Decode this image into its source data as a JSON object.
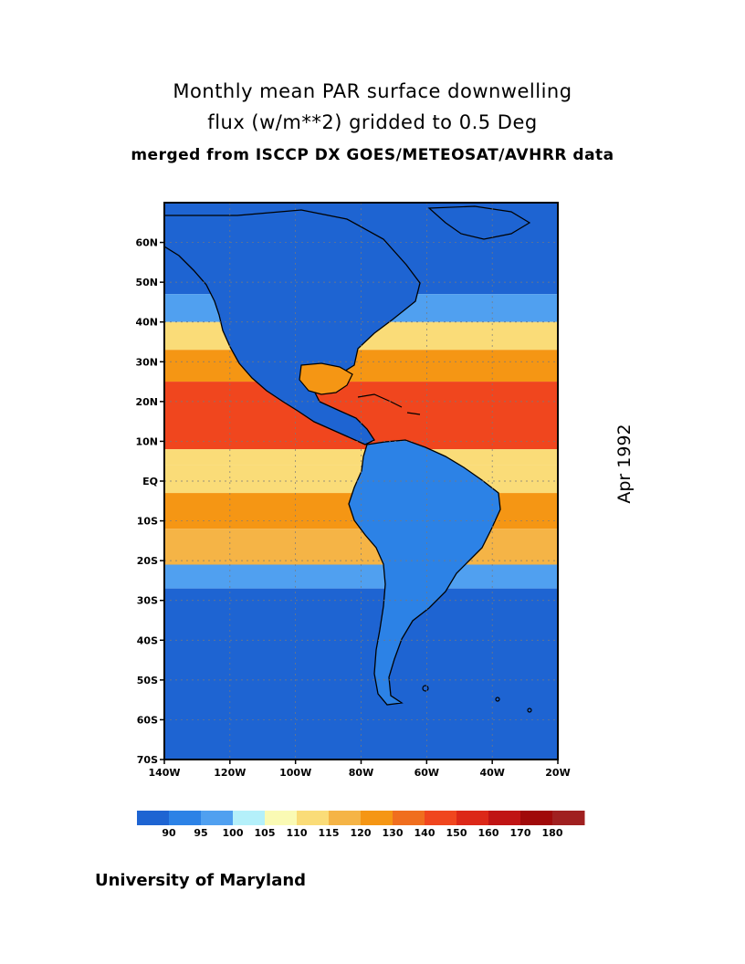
{
  "title": {
    "line1": "Monthly mean PAR surface downwelling",
    "line2": "flux (w/m**2) gridded to 0.5 Deg",
    "line3": "merged from ISCCP DX GOES/METEOSAT/AVHRR data"
  },
  "period_label": "Apr 1992",
  "footer": "University of Maryland",
  "map": {
    "lon_range": [
      -140,
      -20
    ],
    "lat_range": [
      -70,
      70
    ],
    "lon_ticks": [
      {
        "lon": -140,
        "label": "140W"
      },
      {
        "lon": -120,
        "label": "120W"
      },
      {
        "lon": -100,
        "label": "100W"
      },
      {
        "lon": -80,
        "label": "80W"
      },
      {
        "lon": -60,
        "label": "60W"
      },
      {
        "lon": -40,
        "label": "40W"
      },
      {
        "lon": -20,
        "label": "20W"
      }
    ],
    "lat_ticks": [
      {
        "lat": 60,
        "label": "60N"
      },
      {
        "lat": 50,
        "label": "50N"
      },
      {
        "lat": 40,
        "label": "40N"
      },
      {
        "lat": 30,
        "label": "30N"
      },
      {
        "lat": 20,
        "label": "20N"
      },
      {
        "lat": 10,
        "label": "10N"
      },
      {
        "lat": 0,
        "label": "EQ"
      },
      {
        "lat": -10,
        "label": "10S"
      },
      {
        "lat": -20,
        "label": "20S"
      },
      {
        "lat": -30,
        "label": "30S"
      },
      {
        "lat": -40,
        "label": "40S"
      },
      {
        "lat": -50,
        "label": "50S"
      },
      {
        "lat": -60,
        "label": "60S"
      },
      {
        "lat": -70,
        "label": "70S"
      }
    ],
    "grid": true,
    "field_bands": [
      {
        "from_lat": 70,
        "to_lat": 47,
        "level": 0
      },
      {
        "from_lat": 47,
        "to_lat": 40,
        "level": 2
      },
      {
        "from_lat": 40,
        "to_lat": 33,
        "level": 5
      },
      {
        "from_lat": 33,
        "to_lat": 25,
        "level": 7
      },
      {
        "from_lat": 25,
        "to_lat": 8,
        "level": 9
      },
      {
        "from_lat": 8,
        "to_lat": 4,
        "level": 5
      },
      {
        "from_lat": 4,
        "to_lat": -3,
        "level": 5
      },
      {
        "from_lat": -3,
        "to_lat": -12,
        "level": 7
      },
      {
        "from_lat": -12,
        "to_lat": -21,
        "level": 6
      },
      {
        "from_lat": -21,
        "to_lat": -27,
        "level": 2
      },
      {
        "from_lat": -27,
        "to_lat": -70,
        "level": 0
      }
    ]
  },
  "colorbar": {
    "colors": [
      "#1e64d2",
      "#2c82e6",
      "#50a0f0",
      "#b4f0fa",
      "#fafab4",
      "#fadc78",
      "#f5b446",
      "#f59614",
      "#f06e1e",
      "#f0461e",
      "#dc2818",
      "#c01414",
      "#a00a0a",
      "#a02020"
    ],
    "labels": [
      "90",
      "95",
      "100",
      "105",
      "110",
      "115",
      "120",
      "130",
      "140",
      "150",
      "160",
      "170",
      "180"
    ],
    "units": "w/m**2"
  }
}
